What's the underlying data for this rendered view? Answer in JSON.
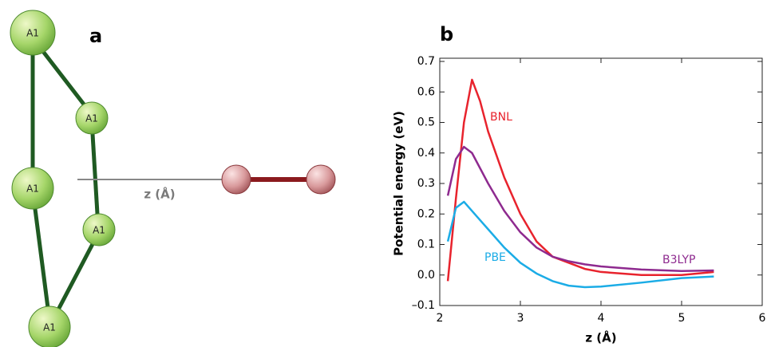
{
  "panel_a": {
    "label": "a",
    "atoms": [
      "A1",
      "A1",
      "A1",
      "A1",
      "A1"
    ],
    "axis_label": "z (Å)"
  },
  "chart_data": {
    "type": "line",
    "panel_label": "b",
    "x_label": "z (Å)",
    "y_label": "Potential energy (eV)",
    "x": [
      2.1,
      2.2,
      2.3,
      2.4,
      2.5,
      2.6,
      2.8,
      3.0,
      3.2,
      3.4,
      3.6,
      3.8,
      4.0,
      4.5,
      5.0,
      5.4
    ],
    "series": [
      {
        "name": "BNL",
        "color": "#e8232d",
        "values": [
          -0.02,
          0.25,
          0.5,
          0.64,
          0.57,
          0.47,
          0.32,
          0.2,
          0.11,
          0.06,
          0.04,
          0.02,
          0.01,
          0.0,
          0.0,
          0.01
        ]
      },
      {
        "name": "B3LYP",
        "color": "#8e2a8f",
        "values": [
          0.26,
          0.38,
          0.42,
          0.4,
          0.35,
          0.3,
          0.21,
          0.14,
          0.09,
          0.06,
          0.045,
          0.035,
          0.028,
          0.018,
          0.013,
          0.015
        ]
      },
      {
        "name": "PBE",
        "color": "#1bace6",
        "values": [
          0.11,
          0.22,
          0.24,
          0.21,
          0.18,
          0.15,
          0.09,
          0.04,
          0.005,
          -0.02,
          -0.035,
          -0.04,
          -0.038,
          -0.025,
          -0.01,
          -0.005
        ]
      }
    ],
    "xlim": [
      2,
      6
    ],
    "xticks": [
      2,
      3,
      4,
      5,
      6
    ],
    "ylim": [
      -0.1,
      0.7
    ],
    "yticks": [
      {
        "value": -0.1,
        "label": "–0.1"
      },
      {
        "value": 0,
        "label": "0.0"
      },
      0.1,
      0.2,
      0.3,
      0.4,
      0.5,
      0.6,
      0.7
    ]
  }
}
